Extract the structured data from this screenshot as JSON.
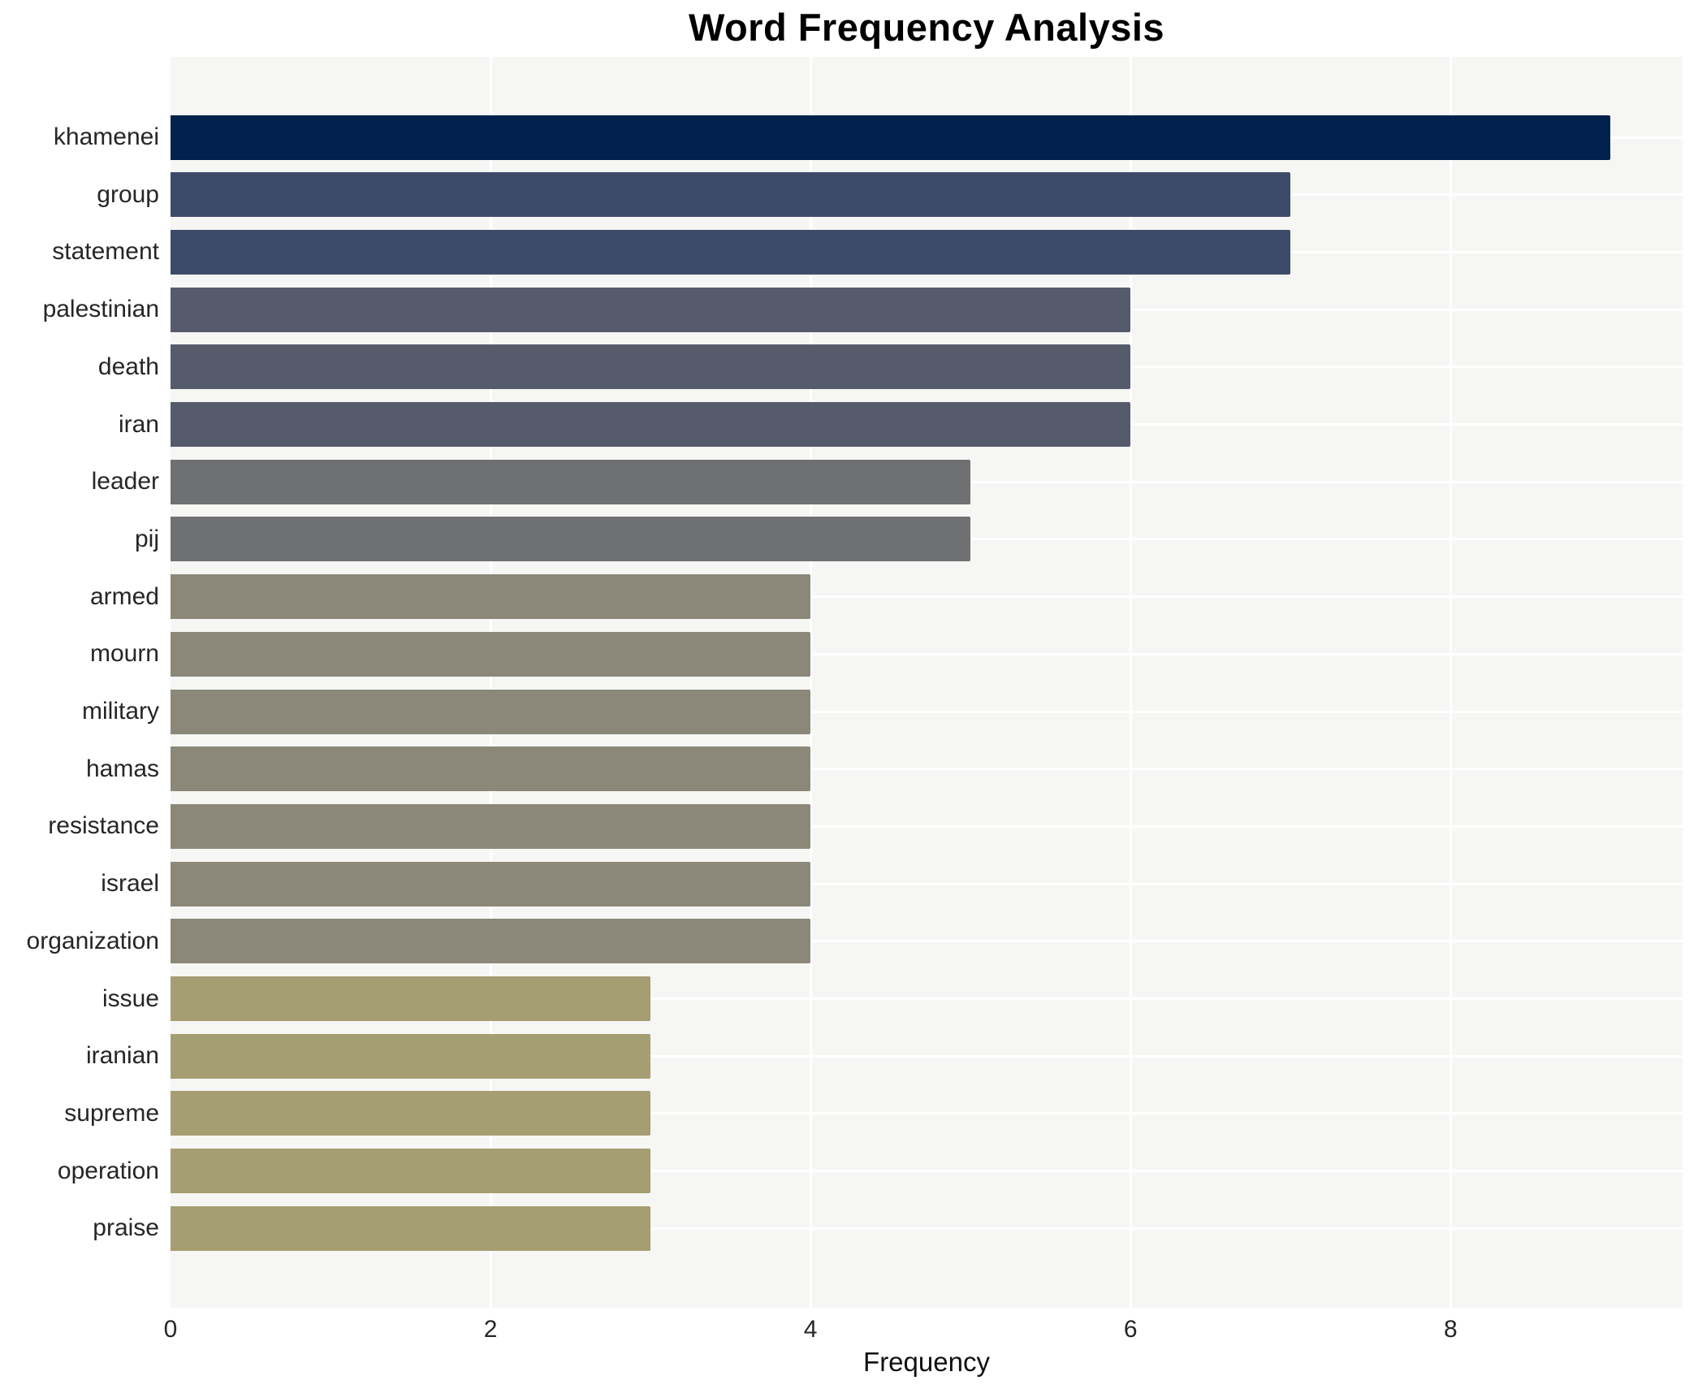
{
  "chart_data": {
    "type": "bar",
    "orientation": "horizontal",
    "title": "Word Frequency Analysis",
    "xlabel": "Frequency",
    "ylabel": "",
    "categories": [
      "khamenei",
      "group",
      "statement",
      "palestinian",
      "death",
      "iran",
      "leader",
      "pij",
      "armed",
      "mourn",
      "military",
      "hamas",
      "resistance",
      "israel",
      "organization",
      "issue",
      "iranian",
      "supreme",
      "operation",
      "praise"
    ],
    "values": [
      9,
      7,
      7,
      6,
      6,
      6,
      5,
      5,
      4,
      4,
      4,
      4,
      4,
      4,
      4,
      3,
      3,
      3,
      3,
      3
    ],
    "bar_colors": [
      "#02214d",
      "#3e4a6a",
      "#3e4a6a",
      "#565b6b",
      "#565b6b",
      "#565b6b",
      "#6f7071",
      "#6f7071",
      "#8b8879",
      "#8b8879",
      "#8b8879",
      "#8b8879",
      "#8b8879",
      "#8b8879",
      "#8b8879",
      "#a69e73",
      "#a69e73",
      "#a69e73",
      "#a69e73",
      "#a69e73"
    ],
    "xlim": [
      0,
      9.45
    ],
    "x_ticks": [
      0,
      2,
      4,
      6,
      8
    ],
    "legend_position": "none",
    "grid": "on",
    "gridline_color": "#ffffff",
    "plot_bg_color": "#f6f6f4",
    "page_bg_color": "#ffffff",
    "text_color": "#262626",
    "title_color": "#000000"
  }
}
